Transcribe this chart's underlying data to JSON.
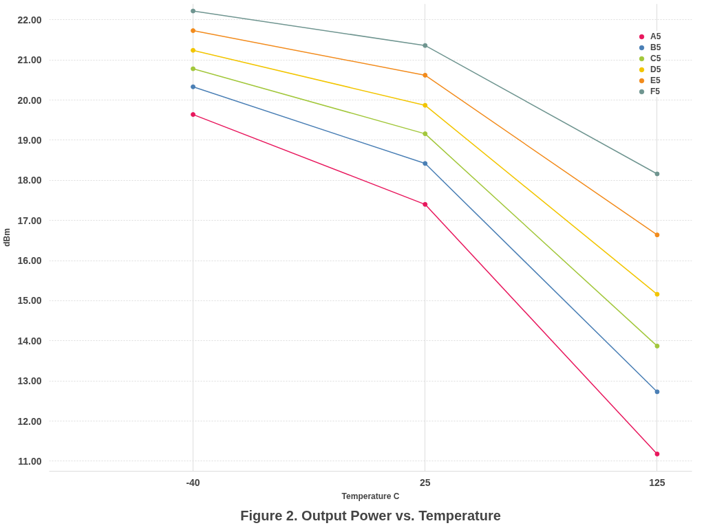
{
  "chart_data": {
    "type": "line",
    "title": "Figure 2. Output Power vs. Temperature",
    "xlabel": "Temperature C",
    "ylabel": "dBm",
    "categories": [
      "-40",
      "25",
      "125"
    ],
    "ylim": [
      10.75,
      22.4
    ],
    "yticks": [
      {
        "value": 11,
        "label": "11.00"
      },
      {
        "value": 12,
        "label": "12.00"
      },
      {
        "value": 13,
        "label": "13.00"
      },
      {
        "value": 14,
        "label": "14.00"
      },
      {
        "value": 15,
        "label": "15.00"
      },
      {
        "value": 16,
        "label": "16.00"
      },
      {
        "value": 17,
        "label": "17.00"
      },
      {
        "value": 18,
        "label": "18.00"
      },
      {
        "value": 19,
        "label": "19.00"
      },
      {
        "value": 20,
        "label": "20.00"
      },
      {
        "value": 21,
        "label": "21.00"
      },
      {
        "value": 22,
        "label": "22.00"
      }
    ],
    "grid": true,
    "legend": "top right",
    "marker": "circle",
    "line_style": "solid",
    "series": [
      {
        "name": "A5",
        "color": "#e8175d",
        "values": [
          19.64,
          17.4,
          11.18
        ]
      },
      {
        "name": "B5",
        "color": "#4a7fb5",
        "values": [
          20.33,
          18.42,
          12.73
        ]
      },
      {
        "name": "C5",
        "color": "#a2c73b",
        "values": [
          20.78,
          19.16,
          13.87
        ]
      },
      {
        "name": "D5",
        "color": "#f2c500",
        "values": [
          21.24,
          19.87,
          15.16
        ]
      },
      {
        "name": "E5",
        "color": "#f28b1c",
        "values": [
          21.73,
          20.62,
          16.64
        ]
      },
      {
        "name": "F5",
        "color": "#6f9590",
        "values": [
          22.22,
          21.36,
          18.16
        ]
      }
    ]
  }
}
